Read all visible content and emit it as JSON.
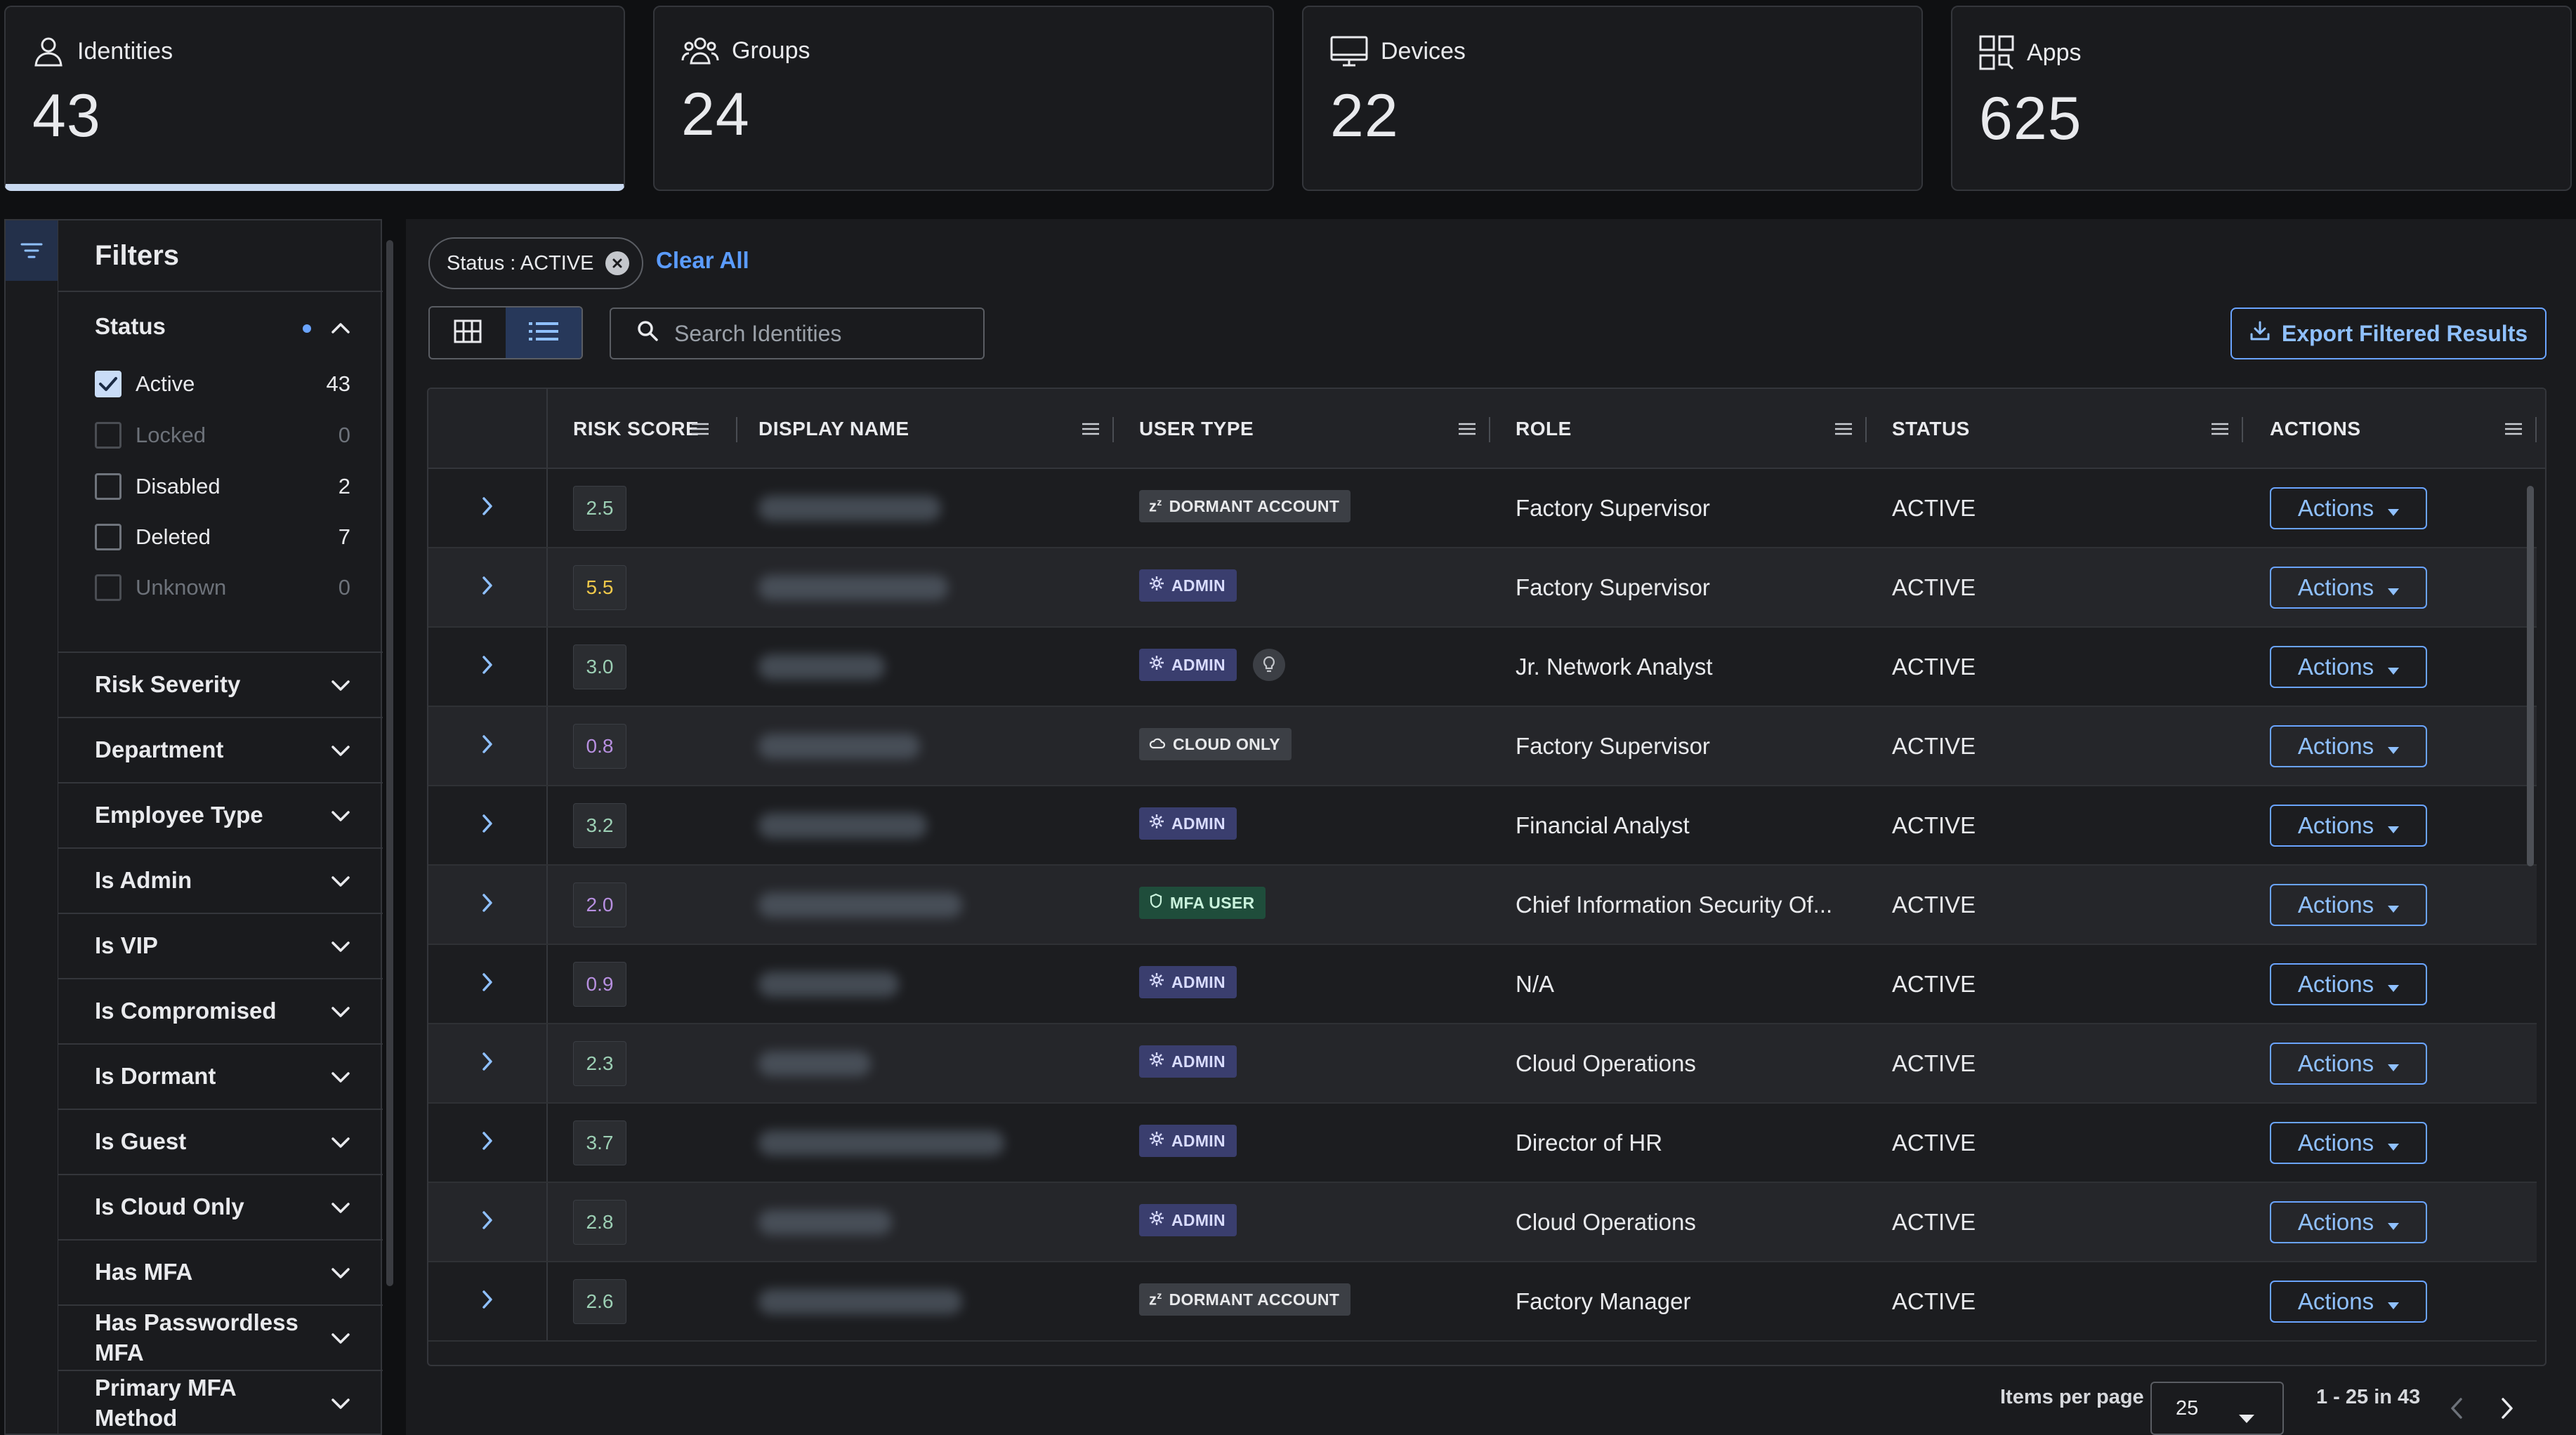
{
  "stats": [
    {
      "label": "Identities",
      "value": "43",
      "icon": "person-icon",
      "active": true
    },
    {
      "label": "Groups",
      "value": "24",
      "icon": "group-icon",
      "active": false
    },
    {
      "label": "Devices",
      "value": "22",
      "icon": "monitor-icon",
      "active": false
    },
    {
      "label": "Apps",
      "value": "625",
      "icon": "apps-grid-icon",
      "active": false
    }
  ],
  "filters": {
    "title": "Filters",
    "status": {
      "label": "Status",
      "options": [
        {
          "label": "Active",
          "count": "43",
          "checked": true,
          "disabled": false
        },
        {
          "label": "Locked",
          "count": "0",
          "checked": false,
          "disabled": true
        },
        {
          "label": "Disabled",
          "count": "2",
          "checked": false,
          "disabled": false
        },
        {
          "label": "Deleted",
          "count": "7",
          "checked": false,
          "disabled": false
        },
        {
          "label": "Unknown",
          "count": "0",
          "checked": false,
          "disabled": true
        }
      ]
    },
    "sections": [
      "Risk Severity",
      "Department",
      "Employee Type",
      "Is Admin",
      "Is VIP",
      "Is Compromised",
      "Is Dormant",
      "Is Guest",
      "Is Cloud Only",
      "Has MFA",
      "Has Passwordless MFA",
      "Primary MFA Method"
    ]
  },
  "toolbar": {
    "chip_label": "Status : ACTIVE",
    "clear_all": "Clear All",
    "search_placeholder": "Search Identities",
    "export_label": "Export Filtered Results"
  },
  "table": {
    "columns": [
      "RISK SCORE",
      "DISPLAY NAME",
      "USER TYPE",
      "ROLE",
      "STATUS",
      "ACTIONS"
    ],
    "action_label": "Actions",
    "rows": [
      {
        "risk": "2.5",
        "risk_color": "#9ccfb4",
        "type": "DORMANT ACCOUNT",
        "type_kind": "dormant",
        "role": "Factory Supervisor",
        "status": "ACTIVE",
        "bulb": false
      },
      {
        "risk": "5.5",
        "risk_color": "#f0c94a",
        "type": "ADMIN",
        "type_kind": "admin",
        "role": "Factory Supervisor",
        "status": "ACTIVE",
        "bulb": false
      },
      {
        "risk": "3.0",
        "risk_color": "#9ccfb4",
        "type": "ADMIN",
        "type_kind": "admin",
        "role": "Jr. Network Analyst",
        "status": "ACTIVE",
        "bulb": true
      },
      {
        "risk": "0.8",
        "risk_color": "#b78fe0",
        "type": "CLOUD ONLY",
        "type_kind": "cloud",
        "role": "Factory Supervisor",
        "status": "ACTIVE",
        "bulb": false
      },
      {
        "risk": "3.2",
        "risk_color": "#9ccfb4",
        "type": "ADMIN",
        "type_kind": "admin",
        "role": "Financial Analyst",
        "status": "ACTIVE",
        "bulb": false
      },
      {
        "risk": "2.0",
        "risk_color": "#b78fe0",
        "type": "MFA USER",
        "type_kind": "mfa",
        "role": "Chief Information Security Of...",
        "status": "ACTIVE",
        "bulb": false
      },
      {
        "risk": "0.9",
        "risk_color": "#b78fe0",
        "type": "ADMIN",
        "type_kind": "admin",
        "role": "N/A",
        "status": "ACTIVE",
        "bulb": false
      },
      {
        "risk": "2.3",
        "risk_color": "#9ccfb4",
        "type": "ADMIN",
        "type_kind": "admin",
        "role": "Cloud Operations",
        "status": "ACTIVE",
        "bulb": false
      },
      {
        "risk": "3.7",
        "risk_color": "#9ccfb4",
        "type": "ADMIN",
        "type_kind": "admin",
        "role": "Director of HR",
        "status": "ACTIVE",
        "bulb": false
      },
      {
        "risk": "2.8",
        "risk_color": "#9ccfb4",
        "type": "ADMIN",
        "type_kind": "admin",
        "role": "Cloud Operations",
        "status": "ACTIVE",
        "bulb": false
      },
      {
        "risk": "2.6",
        "risk_color": "#9ccfb4",
        "type": "DORMANT ACCOUNT",
        "type_kind": "dormant",
        "role": "Factory Manager",
        "status": "ACTIVE",
        "bulb": false
      }
    ]
  },
  "pagination": {
    "items_per_page_label": "Items per page",
    "items_per_page": "25",
    "range": "1 - 25 in 43"
  }
}
